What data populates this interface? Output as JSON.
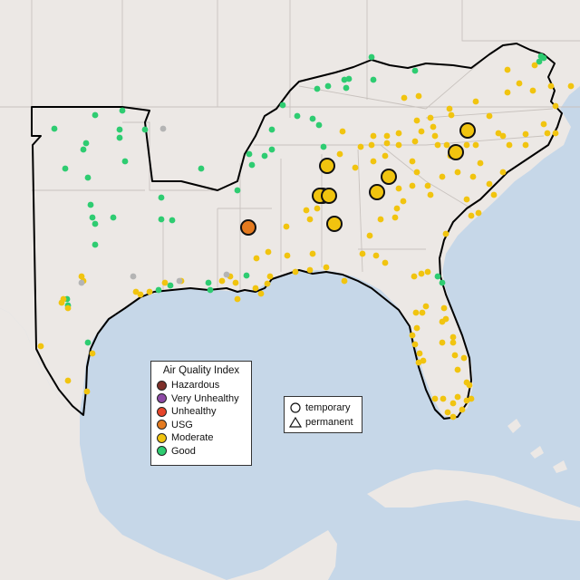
{
  "legend_aqi": {
    "title": "Air Quality Index",
    "categories": [
      {
        "label": "Hazardous",
        "color": "#7e2f2a"
      },
      {
        "label": "Very Unhealthy",
        "color": "#8e4aa6"
      },
      {
        "label": "Unhealthy",
        "color": "#e6452b"
      },
      {
        "label": "USG",
        "color": "#e47a1f"
      },
      {
        "label": "Moderate",
        "color": "#f1c40f"
      },
      {
        "label": "Good",
        "color": "#2ecc71"
      }
    ]
  },
  "legend_type": {
    "items": [
      {
        "label": "temporary",
        "shape": "circle"
      },
      {
        "label": "permanent",
        "shape": "triangle"
      }
    ]
  },
  "colors": {
    "land": "#ece8e5",
    "water": "#c6d7e8",
    "border": "#ccc6c2",
    "region_outline": "#000000",
    "no_data": "#b4b4b4"
  }
}
